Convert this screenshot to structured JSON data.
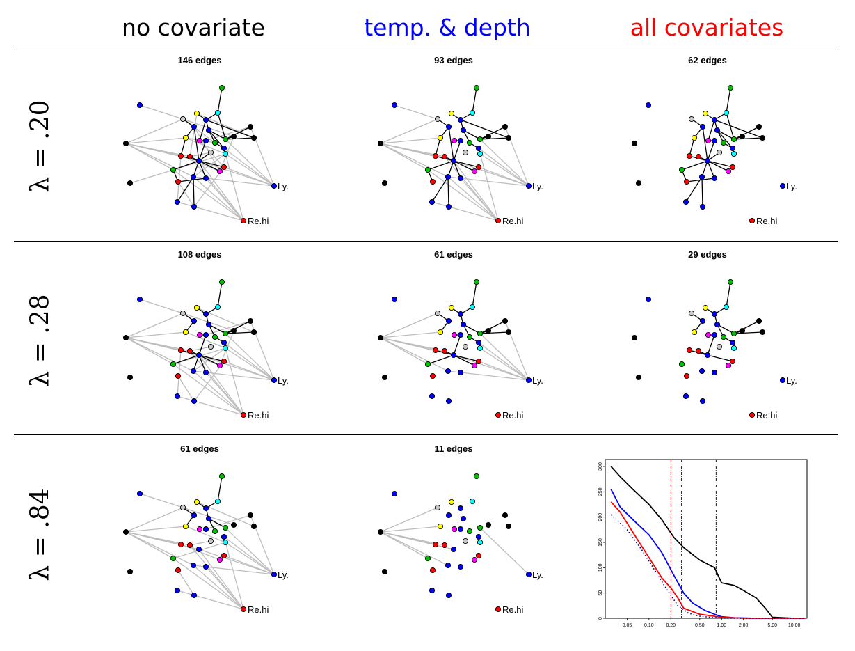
{
  "columns": [
    {
      "label": "no covariate",
      "color": "#000000"
    },
    {
      "label": "temp. & depth",
      "color": "#0000ff"
    },
    {
      "label": "all covariates",
      "color": "#ff0000"
    }
  ],
  "rows": [
    {
      "label": "λ = .20"
    },
    {
      "label": "λ = .28"
    },
    {
      "label": "λ = .84"
    }
  ],
  "panels": [
    {
      "title": "146 edges"
    },
    {
      "title": "93 edges"
    },
    {
      "title": "62 edges"
    },
    {
      "title": "108 edges"
    },
    {
      "title": "61 edges"
    },
    {
      "title": "29 edges"
    },
    {
      "title": "61 edges"
    },
    {
      "title": "11 edges"
    }
  ],
  "node_labels": {
    "ly": "Ly.",
    "rehi": "Re.hi"
  },
  "colors": {
    "edge_gray": "#bdbdbd",
    "edge_black": "#000000"
  },
  "chart_data": {
    "type": "line",
    "xscale": "log",
    "xlim": [
      0.025,
      15
    ],
    "ylim": [
      0,
      300
    ],
    "xticks": [
      "0.05",
      "0.10",
      "0.20",
      "0.50",
      "1.00",
      "2.00",
      "5.00",
      "10.00"
    ],
    "yticks": [
      "0",
      "50",
      "100",
      "150",
      "200",
      "250",
      "300"
    ],
    "series": [
      {
        "color": "#000000",
        "style": "solid",
        "x": [
          0.03,
          0.04,
          0.06,
          0.1,
          0.15,
          0.22,
          0.3,
          0.5,
          0.8,
          1.0,
          1.5,
          2.0,
          3.0,
          4.0,
          5.0,
          7.0,
          10.0,
          14.0
        ],
        "y": [
          300,
          280,
          255,
          225,
          195,
          160,
          140,
          115,
          100,
          70,
          65,
          55,
          40,
          20,
          2,
          1,
          0,
          0
        ]
      },
      {
        "color": "#0000ff",
        "style": "solid",
        "x": [
          0.03,
          0.04,
          0.06,
          0.1,
          0.15,
          0.22,
          0.3,
          0.4,
          0.6,
          0.8,
          1.0,
          1.5,
          3.0,
          7.0,
          14.0
        ],
        "y": [
          255,
          220,
          195,
          165,
          130,
          85,
          50,
          30,
          15,
          8,
          3,
          1,
          0,
          0,
          0
        ]
      },
      {
        "color": "#ff0000",
        "style": "solid",
        "x": [
          0.03,
          0.04,
          0.06,
          0.1,
          0.15,
          0.2,
          0.25,
          0.3,
          0.5,
          0.8,
          1.0,
          2.0,
          5.0,
          14.0
        ],
        "y": [
          230,
          210,
          170,
          120,
          80,
          60,
          40,
          20,
          8,
          4,
          2,
          0,
          0,
          0
        ]
      },
      {
        "color": "#000080",
        "style": "dotted",
        "x": [
          0.03,
          0.05,
          0.08,
          0.12,
          0.18,
          0.25,
          0.35,
          0.5,
          1.0,
          14.0
        ],
        "y": [
          205,
          175,
          135,
          95,
          55,
          25,
          10,
          4,
          0,
          0
        ]
      }
    ],
    "vlines": [
      {
        "x": 0.2,
        "color": "#ff0000"
      },
      {
        "x": 0.28,
        "color": "#0000ff"
      },
      {
        "x": 0.84,
        "color": "#000000"
      }
    ]
  }
}
